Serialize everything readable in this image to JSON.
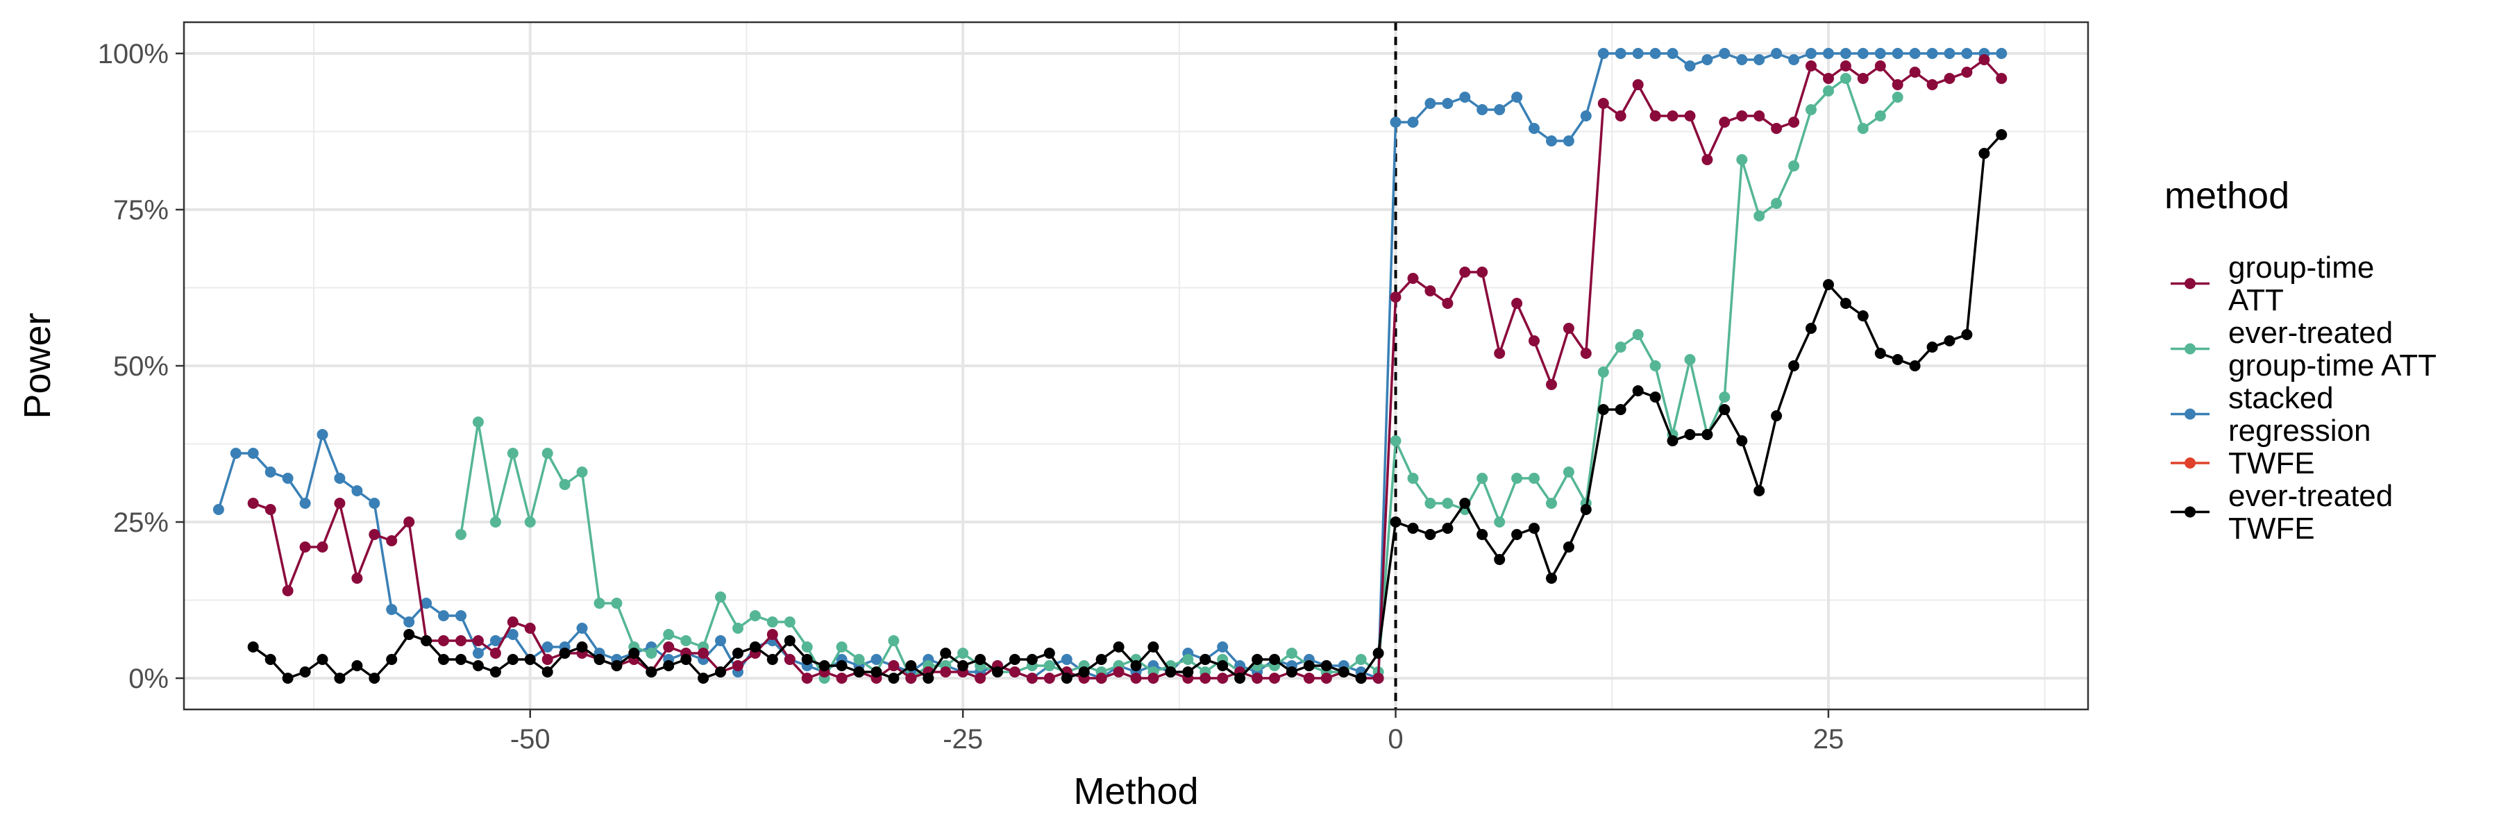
{
  "chart_data": {
    "type": "line",
    "xlabel": "Method",
    "ylabel": "Power",
    "xlim": [
      -70,
      40
    ],
    "ylim": [
      -0.05,
      1.05
    ],
    "x_ticks": [
      -50,
      -25,
      0,
      25
    ],
    "x_tick_labels": [
      "-50",
      "-25",
      "0",
      "25"
    ],
    "y_ticks": [
      0,
      0.25,
      0.5,
      0.75,
      1
    ],
    "y_tick_labels": [
      "0%",
      "25%",
      "50%",
      "75%",
      "100%"
    ],
    "grid": true,
    "vline": 0,
    "legend": {
      "title": "method",
      "position": "right",
      "entries": [
        {
          "label_lines": [
            "group-time",
            "ATT"
          ],
          "color": "#8B0A3C"
        },
        {
          "label_lines": [
            "ever-treated",
            "group-time ATT"
          ],
          "color": "#55B696"
        },
        {
          "label_lines": [
            "stacked",
            "regression"
          ],
          "color": "#3A80B6"
        },
        {
          "label_lines": [
            "TWFE"
          ],
          "color": "#E0412A"
        },
        {
          "label_lines": [
            "ever-treated",
            "TWFE"
          ],
          "color": "#000000"
        }
      ]
    },
    "series": [
      {
        "color": "#3A80B6",
        "x": [
          -68,
          -67,
          -66,
          -65,
          -64,
          -63,
          -62,
          -61,
          -60,
          -59,
          -58,
          -57,
          -56,
          -55,
          -54,
          -53,
          -52,
          -51,
          -50,
          -49,
          -48,
          -47,
          -46,
          -45,
          -44,
          -43,
          -42,
          -41,
          -40,
          -39,
          -38,
          -37,
          -36,
          -35,
          -34,
          -33,
          -32,
          -31,
          -30,
          -29,
          -28,
          -27,
          -26,
          -25,
          -24,
          -23,
          -22,
          -21,
          -20,
          -19,
          -18,
          -17,
          -16,
          -15,
          -14,
          -13,
          -12,
          -11,
          -10,
          -9,
          -8,
          -7,
          -6,
          -5,
          -4,
          -3,
          -2,
          -1,
          0,
          1,
          2,
          3,
          4,
          5,
          6,
          7,
          8,
          9,
          10,
          11,
          12,
          13,
          14,
          15,
          16,
          17,
          18,
          19,
          20,
          21,
          22,
          23,
          24,
          25,
          26,
          27,
          28,
          29,
          30,
          31,
          32,
          33,
          34,
          35
        ],
        "y": [
          0.27,
          0.36,
          0.36,
          0.33,
          0.32,
          0.28,
          0.39,
          0.32,
          0.3,
          0.28,
          0.11,
          0.09,
          0.12,
          0.1,
          0.1,
          0.04,
          0.06,
          0.07,
          0.03,
          0.05,
          0.05,
          0.08,
          0.04,
          0.03,
          0.04,
          0.05,
          0.03,
          0.04,
          0.03,
          0.06,
          0.01,
          0.05,
          0.06,
          0.03,
          0.02,
          0.01,
          0.03,
          0.02,
          0.03,
          0.02,
          0.01,
          0.03,
          0.02,
          0.01,
          0.01,
          0.02,
          0.01,
          0.0,
          0.02,
          0.03,
          0.01,
          0.0,
          0.02,
          0.01,
          0.02,
          0.01,
          0.04,
          0.03,
          0.05,
          0.02,
          0.01,
          0.03,
          0.02,
          0.03,
          0.02,
          0.02,
          0.01,
          0.0,
          0.89,
          0.89,
          0.92,
          0.92,
          0.93,
          0.91,
          0.91,
          0.93,
          0.88,
          0.86,
          0.86,
          0.9,
          1.0,
          1.0,
          1.0,
          1.0,
          1.0,
          0.98,
          0.99,
          1.0,
          0.99,
          0.99,
          1.0,
          0.99,
          1.0,
          1.0,
          1.0,
          1.0,
          1.0,
          1.0,
          1.0,
          1.0,
          1.0,
          1.0,
          1.0,
          1.0
        ]
      },
      {
        "color": "#55B696",
        "x": [
          -54,
          -53,
          -52,
          -51,
          -50,
          -49,
          -48,
          -47,
          -46,
          -45,
          -44,
          -43,
          -42,
          -41,
          -40,
          -39,
          -38,
          -37,
          -36,
          -35,
          -34,
          -33,
          -32,
          -31,
          -30,
          -29,
          -28,
          -27,
          -26,
          -25,
          -24,
          -23,
          -22,
          -21,
          -20,
          -19,
          -18,
          -17,
          -16,
          -15,
          -14,
          -13,
          -12,
          -11,
          -10,
          -9,
          -8,
          -7,
          -6,
          -5,
          -4,
          -3,
          -2,
          -1,
          0,
          1,
          2,
          3,
          4,
          5,
          6,
          7,
          8,
          9,
          10,
          11,
          12,
          13,
          14,
          15,
          16,
          17,
          18,
          19,
          20,
          21,
          22,
          23,
          24,
          25,
          26,
          27,
          28,
          29
        ],
        "y": [
          0.23,
          0.41,
          0.25,
          0.36,
          0.25,
          0.36,
          0.31,
          0.33,
          0.12,
          0.12,
          0.05,
          0.04,
          0.07,
          0.06,
          0.05,
          0.13,
          0.08,
          0.1,
          0.09,
          0.09,
          0.05,
          0.0,
          0.05,
          0.03,
          0.01,
          0.06,
          0.0,
          0.02,
          0.02,
          0.04,
          0.02,
          0.01,
          0.01,
          0.02,
          0.02,
          0.01,
          0.02,
          0.01,
          0.02,
          0.03,
          0.01,
          0.02,
          0.03,
          0.01,
          0.03,
          0.01,
          0.02,
          0.02,
          0.04,
          0.02,
          0.01,
          0.01,
          0.03,
          0.01,
          0.38,
          0.32,
          0.28,
          0.28,
          0.27,
          0.32,
          0.25,
          0.32,
          0.32,
          0.28,
          0.33,
          0.28,
          0.49,
          0.53,
          0.55,
          0.5,
          0.39,
          0.51,
          0.39,
          0.45,
          0.83,
          0.74,
          0.76,
          0.82,
          0.91,
          0.94,
          0.96,
          0.88,
          0.9,
          0.93
        ]
      },
      {
        "color": "#8B0A3C",
        "x": [
          -66,
          -65,
          -64,
          -63,
          -62,
          -61,
          -60,
          -59,
          -58,
          -57,
          -56,
          -55,
          -54,
          -53,
          -52,
          -51,
          -50,
          -49,
          -48,
          -47,
          -46,
          -45,
          -44,
          -43,
          -42,
          -41,
          -40,
          -39,
          -38,
          -37,
          -36,
          -35,
          -34,
          -33,
          -32,
          -31,
          -30,
          -29,
          -28,
          -27,
          -26,
          -25,
          -24,
          -23,
          -22,
          -21,
          -20,
          -19,
          -18,
          -17,
          -16,
          -15,
          -14,
          -13,
          -12,
          -11,
          -10,
          -9,
          -8,
          -7,
          -6,
          -5,
          -4,
          -3,
          -2,
          -1,
          0,
          1,
          2,
          3,
          4,
          5,
          6,
          7,
          8,
          9,
          10,
          11,
          12,
          13,
          14,
          15,
          16,
          17,
          18,
          19,
          20,
          21,
          22,
          23,
          24,
          25,
          26,
          27,
          28,
          29,
          30,
          31,
          32,
          33,
          34,
          35
        ],
        "y": [
          0.28,
          0.27,
          0.14,
          0.21,
          0.21,
          0.28,
          0.16,
          0.23,
          0.22,
          0.25,
          0.06,
          0.06,
          0.06,
          0.06,
          0.04,
          0.09,
          0.08,
          0.03,
          0.04,
          0.04,
          0.03,
          0.02,
          0.03,
          0.01,
          0.05,
          0.04,
          0.04,
          0.01,
          0.02,
          0.04,
          0.07,
          0.03,
          0.0,
          0.01,
          0.0,
          0.01,
          0.0,
          0.02,
          0.0,
          0.01,
          0.01,
          0.01,
          0.0,
          0.02,
          0.01,
          0.0,
          0.0,
          0.01,
          0.0,
          0.0,
          0.01,
          0.0,
          0.0,
          0.01,
          0.0,
          0.0,
          0.0,
          0.01,
          0.0,
          0.0,
          0.01,
          0.0,
          0.0,
          0.01,
          0.0,
          0.0,
          0.61,
          0.64,
          0.62,
          0.6,
          0.65,
          0.65,
          0.52,
          0.6,
          0.54,
          0.47,
          0.56,
          0.52,
          0.92,
          0.9,
          0.95,
          0.9,
          0.9,
          0.9,
          0.83,
          0.89,
          0.9,
          0.9,
          0.88,
          0.89,
          0.98,
          0.96,
          0.98,
          0.96,
          0.98,
          0.95,
          0.97,
          0.95,
          0.96,
          0.97,
          0.99,
          0.96
        ]
      },
      {
        "color": "#000000",
        "x": [
          -66,
          -65,
          -64,
          -63,
          -62,
          -61,
          -60,
          -59,
          -58,
          -57,
          -56,
          -55,
          -54,
          -53,
          -52,
          -51,
          -50,
          -49,
          -48,
          -47,
          -46,
          -45,
          -44,
          -43,
          -42,
          -41,
          -40,
          -39,
          -38,
          -37,
          -36,
          -35,
          -34,
          -33,
          -32,
          -31,
          -30,
          -29,
          -28,
          -27,
          -26,
          -25,
          -24,
          -23,
          -22,
          -21,
          -20,
          -19,
          -18,
          -17,
          -16,
          -15,
          -14,
          -13,
          -12,
          -11,
          -10,
          -9,
          -8,
          -7,
          -6,
          -5,
          -4,
          -3,
          -2,
          -1,
          0,
          1,
          2,
          3,
          4,
          5,
          6,
          7,
          8,
          9,
          10,
          11,
          12,
          13,
          14,
          15,
          16,
          17,
          18,
          19,
          20,
          21,
          22,
          23,
          24,
          25,
          26,
          27,
          28,
          29,
          30,
          31,
          32,
          33,
          34,
          35
        ],
        "y": [
          0.05,
          0.03,
          0.0,
          0.01,
          0.03,
          0.0,
          0.02,
          0.0,
          0.03,
          0.07,
          0.06,
          0.03,
          0.03,
          0.02,
          0.01,
          0.03,
          0.03,
          0.01,
          0.04,
          0.05,
          0.03,
          0.02,
          0.04,
          0.01,
          0.02,
          0.03,
          0.0,
          0.01,
          0.04,
          0.05,
          0.03,
          0.06,
          0.03,
          0.02,
          0.02,
          0.01,
          0.01,
          0.0,
          0.02,
          0.0,
          0.04,
          0.02,
          0.03,
          0.01,
          0.03,
          0.03,
          0.04,
          0.0,
          0.01,
          0.03,
          0.05,
          0.02,
          0.05,
          0.01,
          0.01,
          0.03,
          0.02,
          0.0,
          0.03,
          0.03,
          0.01,
          0.02,
          0.02,
          0.01,
          0.0,
          0.04,
          0.25,
          0.24,
          0.23,
          0.24,
          0.28,
          0.23,
          0.19,
          0.23,
          0.24,
          0.16,
          0.21,
          0.27,
          0.43,
          0.43,
          0.46,
          0.45,
          0.38,
          0.39,
          0.39,
          0.43,
          0.38,
          0.3,
          0.42,
          0.5,
          0.56,
          0.63,
          0.6,
          0.58,
          0.52,
          0.51,
          0.5,
          0.53,
          0.54,
          0.55,
          0.84,
          0.87
        ]
      }
    ]
  }
}
